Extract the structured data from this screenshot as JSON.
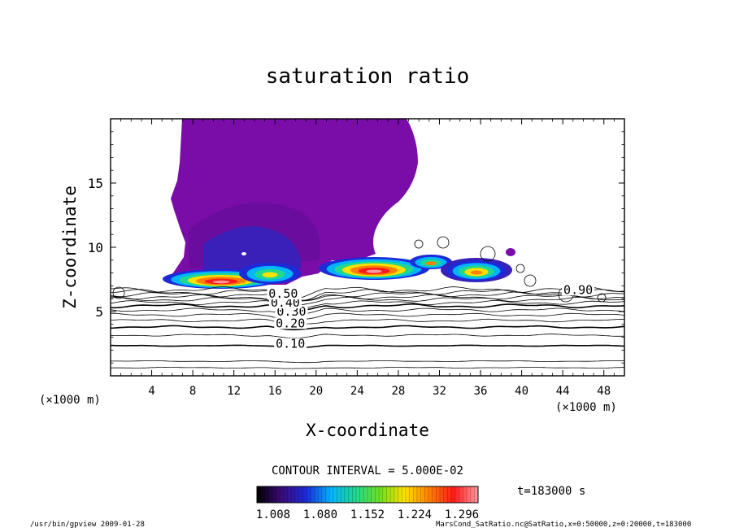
{
  "chart_data": {
    "type": "contour",
    "title": "saturation ratio",
    "xlabel": "X-coordinate",
    "ylabel": "Z-coordinate",
    "x_unit": "(×1000 m)",
    "x_unit_right": "(×1000 m)",
    "xlim": [
      0,
      50
    ],
    "ylim": [
      0,
      20
    ],
    "x_ticks": [
      "4",
      "8",
      "12",
      "16",
      "20",
      "24",
      "28",
      "32",
      "36",
      "40",
      "44",
      "48"
    ],
    "y_ticks": [
      "5",
      "10",
      "15"
    ],
    "contour_labels": [
      {
        "text": "0.10",
        "x": 17.5,
        "z": 2.3
      },
      {
        "text": "0.20",
        "x": 17.5,
        "z": 3.9
      },
      {
        "text": "0.30",
        "x": 17.6,
        "z": 4.8
      },
      {
        "text": "0.40",
        "x": 17.0,
        "z": 5.5
      },
      {
        "text": "0.50",
        "x": 16.8,
        "z": 6.2
      },
      {
        "text": "0.90",
        "x": 45.5,
        "z": 6.5
      }
    ],
    "contour_interval_text": "CONTOUR INTERVAL = 5.000E-02",
    "colorbar": {
      "min": 1.008,
      "max": 1.296,
      "tick_labels": [
        "1.008",
        "1.080",
        "1.152",
        "1.224",
        "1.296"
      ],
      "colors": [
        "#000000",
        "#3a0a7a",
        "#1c2ad8",
        "#00b4ff",
        "#20d890",
        "#6fe020",
        "#ffe000",
        "#ff8000",
        "#ff1a1a",
        "#ff9aa0"
      ]
    },
    "time_label": "t=183000 s",
    "grid": false
  },
  "footer": {
    "left": "/usr/bin/gpview  2009-01-28",
    "right": "MarsCond_SatRatio.nc@SatRatio,x=0:50000,z=0:20000,t=183000"
  }
}
